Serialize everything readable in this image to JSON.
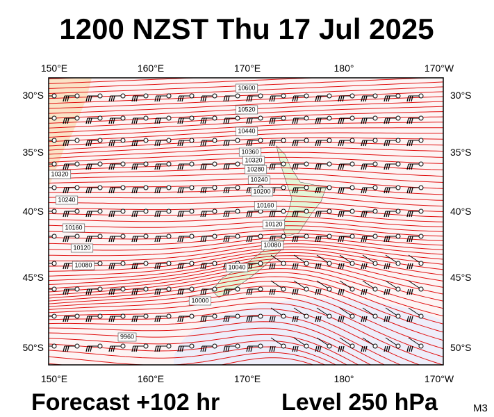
{
  "title": "1200 NZST Thu 17 Jul 2025",
  "axes": {
    "top": [
      "150°E",
      "160°E",
      "170°E",
      "180°",
      "170°W"
    ],
    "bottom": [
      "150°E",
      "160°E",
      "170°E",
      "180°",
      "170°W"
    ],
    "left": [
      "30°S",
      "35°S",
      "40°S",
      "45°S",
      "50°S"
    ],
    "right": [
      "30°S",
      "35°S",
      "40°S",
      "45°S",
      "50°S"
    ]
  },
  "contour_labels": [
    "10600",
    "10520",
    "10440",
    "10360",
    "10320",
    "10280",
    "10240",
    "10200",
    "10160",
    "10120",
    "10080",
    "10040",
    "10000",
    "9960",
    "10320",
    "10240",
    "10160",
    "10120",
    "10080"
  ],
  "footer": {
    "forecast": "Forecast +102 hr",
    "level": "Level 250 hPa",
    "code": "M3"
  }
}
